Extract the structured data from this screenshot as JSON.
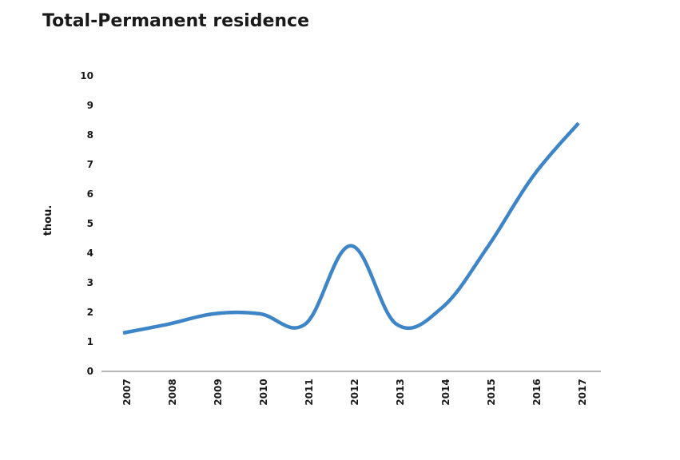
{
  "chart_data": {
    "type": "line",
    "title": "Total-Permanent residence",
    "xlabel": "",
    "ylabel": "thou.",
    "categories": [
      "2007",
      "2008",
      "2009",
      "2010",
      "2011",
      "2012",
      "2013",
      "2014",
      "2015",
      "2016",
      "2017"
    ],
    "series": [
      {
        "values": [
          1.3,
          1.6,
          1.95,
          1.95,
          1.6,
          4.25,
          1.6,
          2.15,
          4.2,
          6.6,
          8.4
        ]
      }
    ],
    "yticks": [
      0,
      1,
      2,
      3,
      4,
      5,
      6,
      7,
      8,
      9,
      10
    ],
    "ylim": [
      0,
      10
    ],
    "grid": false,
    "line_color": "#3d85c6",
    "line_style": "smooth"
  }
}
